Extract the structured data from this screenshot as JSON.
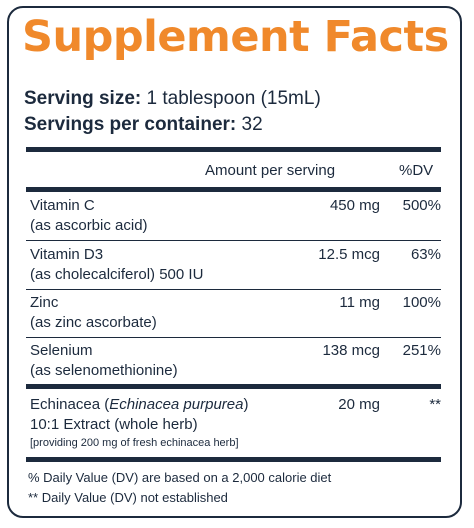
{
  "title": "Supplement Facts",
  "serving_size": {
    "label": "Serving size:",
    "value": "1 tablespoon (15mL)"
  },
  "servings_per_container": {
    "label": "Servings per container:",
    "value": "32"
  },
  "table_header": {
    "amount": "Amount per serving",
    "dv": "%DV"
  },
  "nutrients": [
    {
      "name": "Vitamin C",
      "source": "(as ascorbic acid)",
      "amount": "450 mg",
      "dv": "500%"
    },
    {
      "name": "Vitamin D3",
      "source": "(as cholecalciferol) 500 IU",
      "amount": "12.5 mcg",
      "dv": "63%"
    },
    {
      "name": "Zinc",
      "source": "(as zinc ascorbate)",
      "amount": "11 mg",
      "dv": "100%"
    },
    {
      "name": "Selenium",
      "source": "(as selenomethionine)",
      "amount": "138 mcg",
      "dv": "251%"
    }
  ],
  "herb": {
    "name_prefix": "Echinacea (",
    "name_latin": "Echinacea purpurea",
    "name_suffix": ")",
    "line2": "10:1 Extract (whole herb)",
    "line3": "[providing 200 mg of fresh echinacea herb]",
    "amount": "20 mg",
    "dv": "**"
  },
  "footnotes": [
    "% Daily Value (DV) are based on a 2,000 calorie diet",
    "** Daily Value (DV) not established"
  ],
  "colors": {
    "title": "#f0892b",
    "text": "#1c2a3d"
  }
}
